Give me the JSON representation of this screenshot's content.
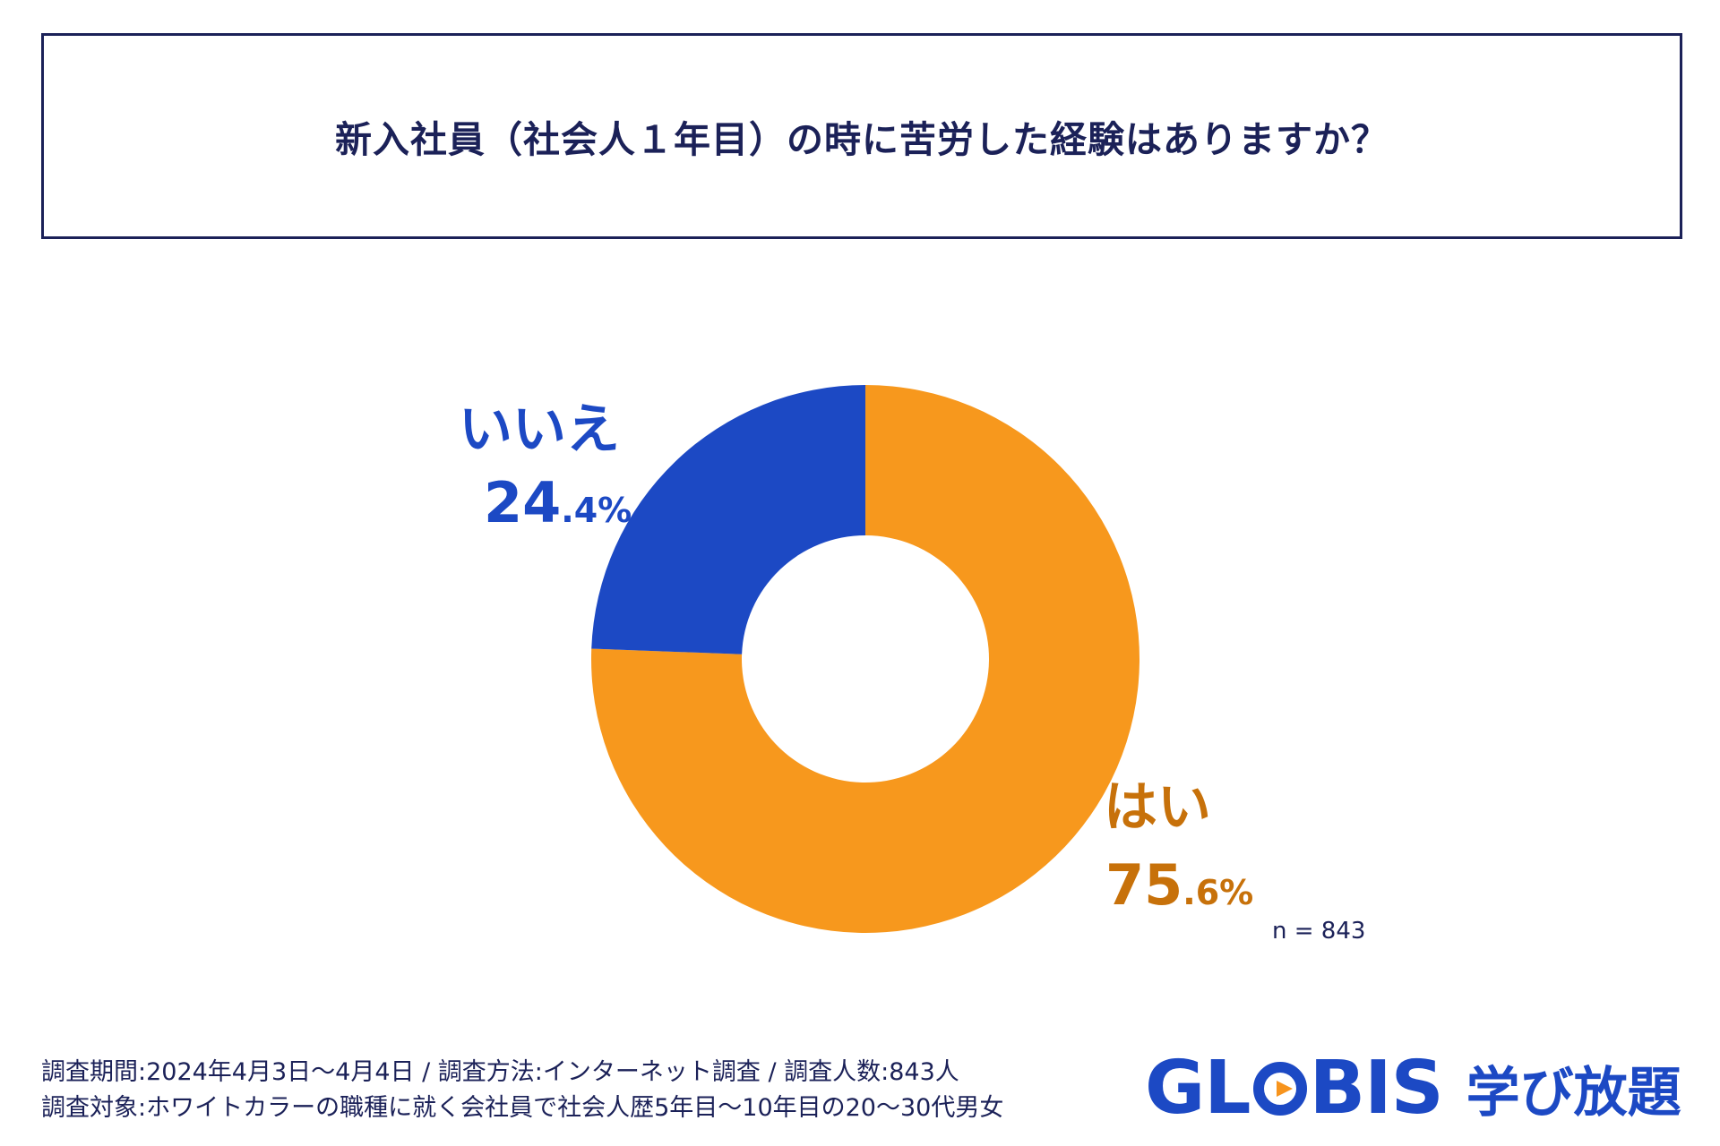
{
  "chart_data": {
    "type": "pie",
    "variant": "donut",
    "title": "新入社員（社会人１年目）の時に苦労した経験はありますか？",
    "slices": [
      {
        "label": "はい",
        "value": 75.6,
        "int": "75",
        "frac": ".6%",
        "color": "#f7981d",
        "text_color": "#c7710a"
      },
      {
        "label": "いいえ",
        "value": 24.4,
        "int": "24",
        "frac": ".4%",
        "color": "#1c49c4",
        "text_color": "#1c49c4"
      }
    ],
    "n_label": "n = 843"
  },
  "footer": {
    "line1": "調査期間:2024年4月3日〜4月4日 / 調査方法:インターネット調査 / 調査人数:843人",
    "line2": "調査対象:ホワイトカラーの職種に就く会社員で社会人歴5年目〜10年目の20〜30代男女"
  },
  "logo": {
    "word_pre": "GL",
    "word_post": "BIS",
    "sub": "学び放題",
    "brand_color": "#1c49c4",
    "accent_color": "#f7941d"
  }
}
